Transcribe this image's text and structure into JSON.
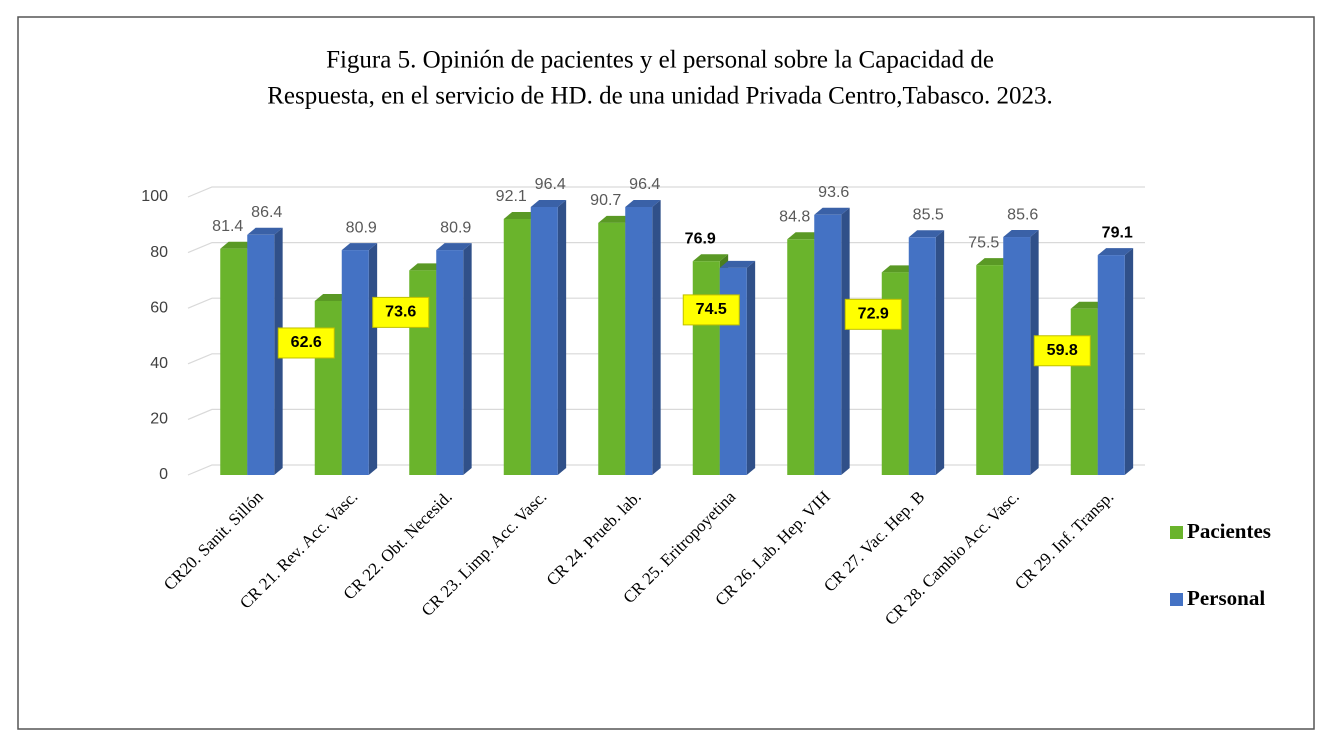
{
  "chart_data": {
    "type": "bar3d",
    "title": [
      "Figura 5. Opinión  de pacientes  y el personal  sobre la Capacidad de",
      "Respuesta,  en el servicio  de HD. de una  unidad  Privada  Centro,Tabasco.  2023."
    ],
    "categories": [
      "CR20. Sanit. Sillón",
      "CR 21. Rev. Acc. Vasc.",
      "CR 22. Obt. Necesid.",
      "CR 23. Limp. Acc. Vasc.",
      "CR 24. Prueb. lab.",
      "CR 25. Eritropoyetina",
      "CR 26. Lab. Hep. VIH",
      "CR 27. Vac. Hep. B",
      "CR 28. Cambio Acc. Vasc.",
      "CR 29. Inf. Transp."
    ],
    "series": [
      {
        "name": "Pacientes",
        "color": "#6ab42c",
        "values": [
          81.4,
          62.6,
          73.6,
          92.1,
          90.7,
          76.9,
          84.8,
          72.9,
          75.5,
          59.8
        ]
      },
      {
        "name": "Personal",
        "color": "#4472c4",
        "values": [
          86.4,
          80.9,
          80.9,
          96.4,
          96.4,
          74.5,
          93.6,
          85.5,
          85.6,
          79.1
        ]
      }
    ],
    "ylim": [
      0,
      100
    ],
    "yticks": [
      0,
      20,
      40,
      60,
      80,
      100
    ],
    "grid": true,
    "legend": "right"
  }
}
